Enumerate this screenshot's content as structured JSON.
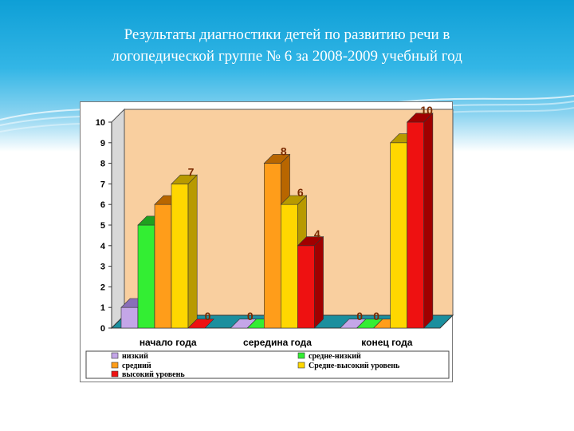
{
  "slide": {
    "title_line1": "Результаты диагностики детей по развитию речи в",
    "title_line2": "логопедической группе № 6 за 2008-2009 учебный год"
  },
  "colors": {
    "header": "#1aa7dc",
    "plot_bg": "#f9cf9f",
    "floor": "#1b8f9e"
  },
  "chart_data": {
    "type": "bar",
    "categories": [
      "начало года",
      "середина года",
      "конец года"
    ],
    "series": [
      {
        "name": "низкий",
        "values": [
          1,
          0,
          0
        ],
        "color": "#c4a6e8",
        "side": "#8a6fb8",
        "label_color": "#7a2a00"
      },
      {
        "name": "средне-низкий",
        "values": [
          5,
          0,
          0
        ],
        "color": "#33ee33",
        "side": "#1fa01f",
        "label_color": "#7a2a00"
      },
      {
        "name": "средний",
        "values": [
          6,
          8,
          0
        ],
        "color": "#ff9d1a",
        "side": "#b86600",
        "label_color": "#7a2a00"
      },
      {
        "name": "Средне-высокий уровень",
        "values": [
          7,
          6,
          9
        ],
        "color": "#ffd700",
        "side": "#b89a00",
        "label_color": "#7a2a00"
      },
      {
        "name": "высокий уровень",
        "values": [
          0,
          4,
          10
        ],
        "color": "#ee1111",
        "side": "#a00000",
        "label_color": "#7a2a00"
      }
    ],
    "ylim": [
      0,
      10
    ],
    "yticks": [
      "0",
      "1",
      "2",
      "3",
      "4",
      "5",
      "6",
      "7",
      "8",
      "9",
      "10"
    ],
    "grid": false,
    "legend_position": "bottom"
  }
}
